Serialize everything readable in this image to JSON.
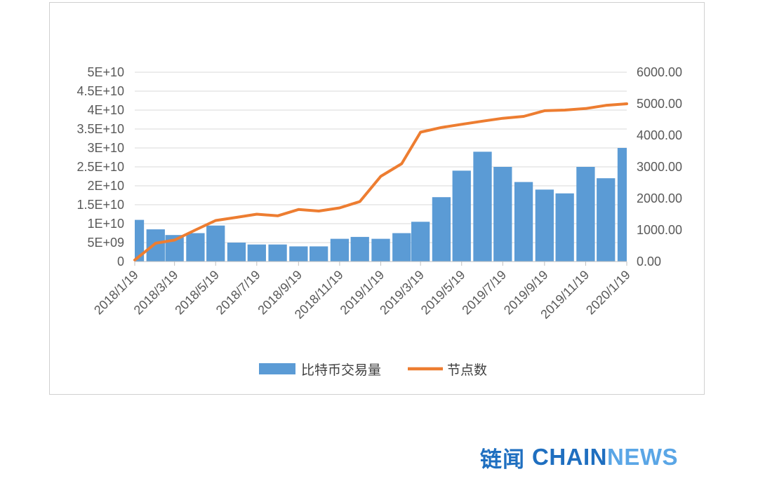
{
  "chart_data": {
    "type": "bar+line",
    "title": "",
    "x_tick_labels": [
      "2018/1/19",
      "2018/3/19",
      "2018/5/19",
      "2018/7/19",
      "2018/9/19",
      "2018/11/19",
      "2019/1/19",
      "2019/3/19",
      "2019/5/19",
      "2019/7/19",
      "2019/9/19",
      "2019/11/19",
      "2020/1/19"
    ],
    "left_axis": {
      "ylim": [
        0,
        50000000000
      ],
      "tick_labels": [
        "0",
        "5E+09",
        "1E+10",
        "1.5E+10",
        "2E+10",
        "2.5E+10",
        "3E+10",
        "3.5E+10",
        "4E+10",
        "4.5E+10",
        "5E+10"
      ]
    },
    "right_axis": {
      "ylim": [
        0,
        6000
      ],
      "tick_labels": [
        "0.00",
        "1000.00",
        "2000.00",
        "3000.00",
        "4000.00",
        "5000.00",
        "6000.00"
      ]
    },
    "grid": true,
    "legend_position": "bottom",
    "series": [
      {
        "name": "比特币交易量",
        "type": "bar",
        "axis": "left",
        "color": "#5b9bd5",
        "x": [
          "2018/1/19",
          "2018/2/19",
          "2018/3/19",
          "2018/4/19",
          "2018/5/19",
          "2018/6/19",
          "2018/7/19",
          "2018/8/19",
          "2018/9/19",
          "2018/10/19",
          "2018/11/19",
          "2018/12/19",
          "2019/1/19",
          "2019/2/19",
          "2019/3/19",
          "2019/4/19",
          "2019/5/19",
          "2019/6/19",
          "2019/7/19",
          "2019/8/19",
          "2019/9/19",
          "2019/10/19",
          "2019/11/19",
          "2019/12/19",
          "2020/1/19"
        ],
        "values": [
          11000000000,
          8500000000,
          7000000000,
          7500000000,
          9500000000,
          5000000000,
          4500000000,
          4500000000,
          4000000000,
          4000000000,
          6000000000,
          6500000000,
          6000000000,
          7500000000,
          10500000000,
          17000000000,
          24000000000,
          29000000000,
          25000000000,
          21000000000,
          19000000000,
          18000000000,
          25000000000,
          22000000000,
          30000000000
        ]
      },
      {
        "name": "节点数",
        "type": "line",
        "axis": "right",
        "color": "#ed7d31",
        "x": [
          "2018/1/19",
          "2018/2/19",
          "2018/3/19",
          "2018/4/19",
          "2018/5/19",
          "2018/6/19",
          "2018/7/19",
          "2018/8/19",
          "2018/9/19",
          "2018/10/19",
          "2018/11/19",
          "2018/12/19",
          "2019/1/19",
          "2019/2/19",
          "2019/3/19",
          "2019/4/19",
          "2019/5/19",
          "2019/6/19",
          "2019/7/19",
          "2019/8/19",
          "2019/9/19",
          "2019/10/19",
          "2019/11/19",
          "2019/12/19",
          "2020/1/19"
        ],
        "values": [
          50,
          580,
          680,
          1000,
          1300,
          1400,
          1500,
          1450,
          1650,
          1600,
          1700,
          1900,
          2700,
          3100,
          4100,
          4250,
          4350,
          4450,
          4540,
          4600,
          4780,
          4800,
          4850,
          4950,
          5000
        ]
      }
    ]
  },
  "watermark": {
    "cn_text": "链闻",
    "en_primary": "CHAIN",
    "en_secondary": "NEWS"
  }
}
